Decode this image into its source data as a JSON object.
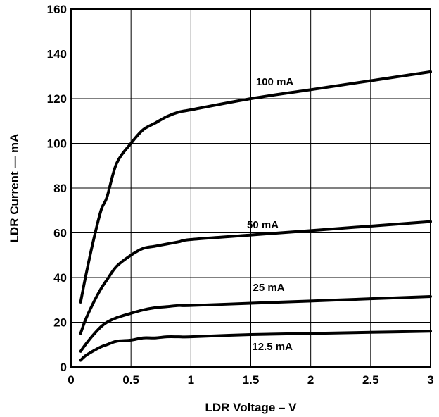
{
  "chart_data": {
    "type": "line",
    "xlabel": "LDR Voltage – V",
    "ylabel": "LDR Current — mA",
    "xlim": [
      0,
      3
    ],
    "ylim": [
      0,
      160
    ],
    "x_ticks": [
      0,
      0.5,
      1,
      1.5,
      2,
      2.5,
      3
    ],
    "x_tick_labels": [
      "0",
      "0.5",
      "1",
      "1.5",
      "2",
      "2.5",
      "3"
    ],
    "y_ticks": [
      0,
      20,
      40,
      60,
      80,
      100,
      120,
      140,
      160
    ],
    "y_tick_labels": [
      "0",
      "20",
      "40",
      "60",
      "80",
      "100",
      "120",
      "140",
      "160"
    ],
    "grid": true,
    "legend": "none",
    "series": [
      {
        "name": "100 mA",
        "x": [
          0.08,
          0.12,
          0.18,
          0.25,
          0.3,
          0.38,
          0.5,
          0.6,
          0.7,
          0.8,
          0.9,
          1.0,
          1.5,
          2.0,
          2.5,
          3.0
        ],
        "y": [
          29,
          40,
          55,
          70,
          76,
          91,
          100,
          106,
          109,
          112,
          114,
          115,
          120,
          124,
          128,
          132
        ]
      },
      {
        "name": "50 mA",
        "x": [
          0.08,
          0.12,
          0.18,
          0.25,
          0.3,
          0.38,
          0.5,
          0.6,
          0.7,
          0.8,
          0.9,
          1.0,
          1.5,
          2.0,
          2.5,
          3.0
        ],
        "y": [
          15,
          21,
          28,
          35,
          39,
          45,
          50,
          53,
          54,
          55,
          56,
          57,
          59,
          61,
          63,
          65
        ]
      },
      {
        "name": "25 mA",
        "x": [
          0.08,
          0.12,
          0.18,
          0.25,
          0.3,
          0.38,
          0.5,
          0.6,
          0.7,
          0.8,
          0.9,
          1.0,
          1.5,
          2.0,
          2.5,
          3.0
        ],
        "y": [
          7,
          10,
          14,
          18,
          20,
          22,
          24,
          25.5,
          26.5,
          27,
          27.5,
          27.5,
          28.5,
          29.5,
          30.5,
          31.5
        ]
      },
      {
        "name": "12.5 mA",
        "x": [
          0.08,
          0.12,
          0.18,
          0.25,
          0.3,
          0.38,
          0.5,
          0.6,
          0.7,
          0.8,
          0.9,
          1.0,
          1.5,
          2.0,
          2.5,
          3.0
        ],
        "y": [
          3,
          5,
          7,
          9,
          10,
          11.5,
          12,
          13,
          13,
          13.5,
          13.5,
          13.5,
          14.5,
          15,
          15.5,
          16
        ]
      }
    ],
    "annotations": [
      {
        "text": "100 mA",
        "x": 1.7,
        "y": 126
      },
      {
        "text": "50 mA",
        "x": 1.6,
        "y": 62
      },
      {
        "text": "25 mA",
        "x": 1.65,
        "y": 34
      },
      {
        "text": "12.5 mA",
        "x": 1.68,
        "y": 7.5
      }
    ]
  }
}
